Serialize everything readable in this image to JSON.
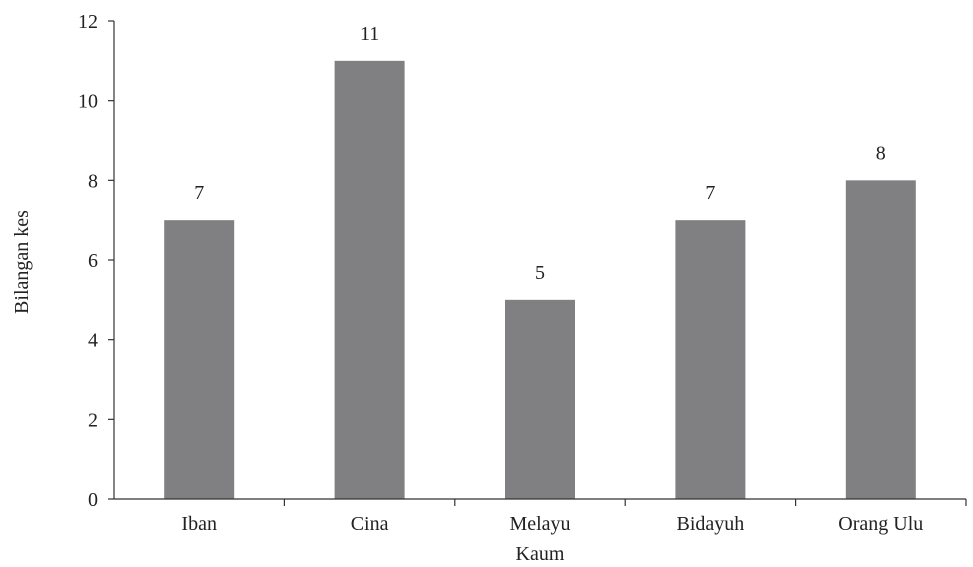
{
  "chart_data": {
    "type": "bar",
    "title": "",
    "xlabel": "Kaum",
    "ylabel": "Bilangan kes",
    "categories": [
      "Iban",
      "Cina",
      "Melayu",
      "Bidayuh",
      "Orang Ulu"
    ],
    "values": [
      7,
      11,
      5,
      7,
      8
    ],
    "data_labels": [
      "7",
      "11",
      "5",
      "7",
      "8"
    ],
    "ylim": [
      0,
      12
    ],
    "yticks": [
      0,
      2,
      4,
      6,
      8,
      10,
      12
    ],
    "grid": false,
    "legend": "none",
    "colors": {
      "bar": "#808083",
      "axis": "#333333",
      "text": "#222222"
    }
  }
}
